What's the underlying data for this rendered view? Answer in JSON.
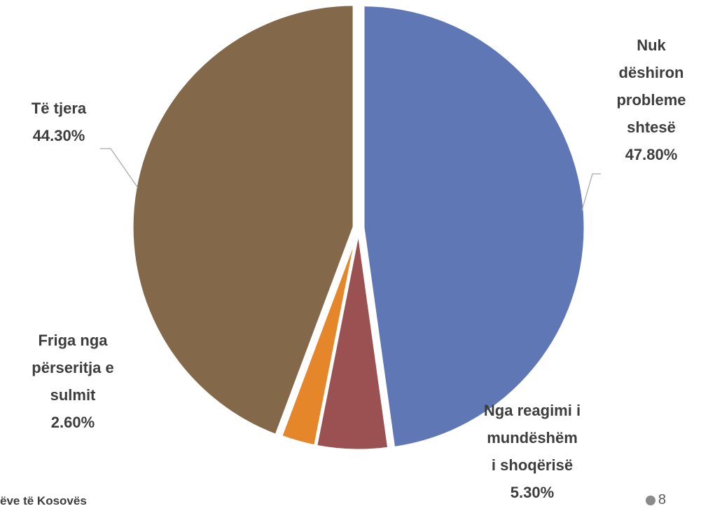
{
  "chart_data": {
    "type": "pie",
    "slices": [
      {
        "lines": [
          "Nuk",
          "dëshiron",
          "probleme",
          "shtesë"
        ],
        "value_label": "47.80%",
        "value": 47.8,
        "color": "#6077b5"
      },
      {
        "lines": [
          "Nga reagimi i",
          "mundëshëm",
          "i shoqërisë"
        ],
        "value_label": "5.30%",
        "value": 5.3,
        "color": "#9b5052"
      },
      {
        "lines": [
          "Friga nga",
          "përseritja e",
          "sulmit"
        ],
        "value_label": "2.60%",
        "value": 2.6,
        "color": "#e6862a"
      },
      {
        "lines": [
          "Të tjera"
        ],
        "value_label": "44.30%",
        "value": 44.3,
        "color": "#836849"
      }
    ]
  },
  "footer": {
    "text": "ëve të Kosovës",
    "page_number": "8"
  }
}
